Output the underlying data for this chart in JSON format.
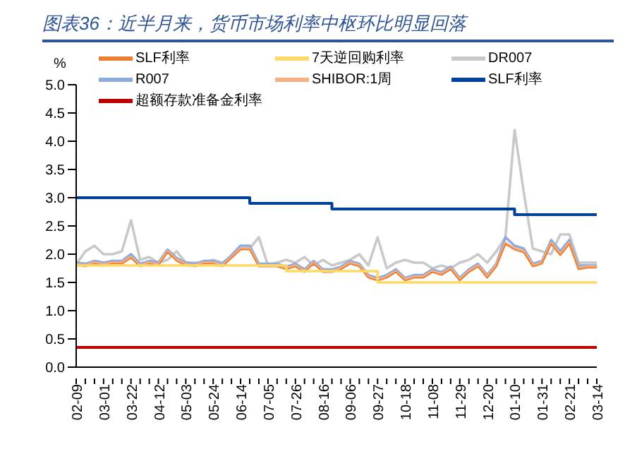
{
  "chart_data": {
    "type": "line",
    "title": "图表36：近半月来，货币市场利率中枢环比明显回落",
    "ylabel": "%",
    "categories": [
      "02-09",
      null,
      null,
      "03-01",
      null,
      null,
      "03-22",
      null,
      null,
      "04-12",
      null,
      null,
      "05-03",
      null,
      null,
      "05-24",
      null,
      null,
      "06-14",
      null,
      null,
      "07-05",
      null,
      null,
      "07-26",
      null,
      null,
      "08-16",
      null,
      null,
      "09-06",
      null,
      null,
      "09-27",
      null,
      null,
      "10-18",
      null,
      null,
      "11-08",
      null,
      null,
      "11-29",
      null,
      null,
      "12-20",
      null,
      null,
      "01-10",
      null,
      null,
      "01-31",
      null,
      null,
      "02-21",
      null,
      null,
      "03-14"
    ],
    "ylim": [
      0,
      5
    ],
    "yticks": [
      {
        "value": 0,
        "label": "0.0"
      },
      {
        "value": 0.5,
        "label": "0.5"
      },
      {
        "value": 1,
        "label": "1.0"
      },
      {
        "value": 1.5,
        "label": "1.5"
      },
      {
        "value": 2,
        "label": "2.0"
      },
      {
        "value": 2.5,
        "label": "2.5"
      },
      {
        "value": 3,
        "label": "3.0"
      },
      {
        "value": 3.5,
        "label": "3.5"
      },
      {
        "value": 4,
        "label": "4.0"
      },
      {
        "value": 4.5,
        "label": "4.5"
      },
      {
        "value": 5,
        "label": "5.0"
      }
    ],
    "grid": false,
    "legend": "top",
    "marker": "none",
    "series": [
      {
        "name": "SLF利率",
        "color": "#ed7d31",
        "values": [
          1.8,
          1.78,
          1.83,
          1.8,
          1.83,
          1.83,
          1.93,
          1.78,
          1.83,
          1.8,
          2.03,
          1.88,
          1.8,
          1.78,
          1.83,
          1.83,
          1.78,
          1.93,
          2.08,
          2.08,
          1.78,
          1.78,
          1.78,
          1.73,
          1.78,
          1.68,
          1.83,
          1.68,
          1.68,
          1.73,
          1.83,
          1.78,
          1.58,
          1.53,
          1.58,
          1.68,
          1.53,
          1.58,
          1.58,
          1.68,
          1.63,
          1.73,
          1.53,
          1.68,
          1.78,
          1.58,
          1.78,
          2.18,
          2.08,
          2.03,
          1.78,
          1.83,
          2.18,
          1.98,
          2.18,
          1.73,
          1.76,
          1.76
        ]
      },
      {
        "name": "7天逆回购利率",
        "color": "#ffd966",
        "type": "step",
        "values": [
          1.8,
          1.8,
          1.8,
          1.8,
          1.8,
          1.8,
          1.8,
          1.8,
          1.8,
          1.8,
          1.8,
          1.8,
          1.8,
          1.8,
          1.8,
          1.8,
          1.8,
          1.8,
          1.8,
          1.8,
          1.8,
          1.8,
          1.8,
          1.7,
          1.7,
          1.7,
          1.7,
          1.7,
          1.7,
          1.7,
          1.7,
          1.7,
          1.7,
          1.5,
          1.5,
          1.5,
          1.5,
          1.5,
          1.5,
          1.5,
          1.5,
          1.5,
          1.5,
          1.5,
          1.5,
          1.5,
          1.5,
          1.5,
          1.5,
          1.5,
          1.5,
          1.5,
          1.5,
          1.5,
          1.5,
          1.5,
          1.5,
          1.5
        ]
      },
      {
        "name": "DR007",
        "color": "#c9c9c9",
        "values": [
          1.82,
          2.05,
          2.15,
          2.0,
          2.0,
          2.05,
          2.6,
          1.9,
          1.95,
          1.85,
          1.9,
          2.05,
          1.85,
          1.85,
          1.85,
          1.9,
          1.85,
          1.95,
          2.1,
          2.1,
          2.3,
          1.8,
          1.85,
          1.9,
          1.85,
          1.95,
          1.8,
          1.9,
          1.8,
          1.85,
          1.9,
          2.0,
          1.8,
          2.3,
          1.75,
          1.85,
          1.9,
          1.85,
          1.85,
          1.75,
          1.8,
          1.75,
          1.85,
          1.9,
          2.0,
          1.85,
          2.05,
          2.3,
          4.2,
          3.1,
          2.1,
          2.05,
          2.0,
          2.35,
          2.35,
          1.85,
          1.85,
          1.85
        ]
      },
      {
        "name": "R007",
        "color": "#8faadc",
        "values": [
          1.85,
          1.83,
          1.88,
          1.85,
          1.88,
          1.88,
          2.0,
          1.83,
          1.88,
          1.85,
          2.08,
          1.93,
          1.85,
          1.83,
          1.88,
          1.88,
          1.83,
          1.98,
          2.15,
          2.15,
          1.83,
          1.83,
          1.83,
          1.78,
          1.83,
          1.73,
          1.88,
          1.73,
          1.73,
          1.78,
          1.88,
          1.83,
          1.63,
          1.58,
          1.63,
          1.73,
          1.58,
          1.63,
          1.63,
          1.73,
          1.68,
          1.78,
          1.58,
          1.73,
          1.83,
          1.63,
          1.83,
          2.3,
          2.15,
          2.1,
          1.83,
          1.88,
          2.25,
          2.05,
          2.25,
          1.8,
          1.8,
          1.8
        ]
      },
      {
        "name": "SHIBOR:1周",
        "color": "#f4b183",
        "values": [
          1.82,
          1.8,
          1.85,
          1.82,
          1.85,
          1.85,
          1.95,
          1.8,
          1.85,
          1.82,
          2.05,
          1.9,
          1.82,
          1.8,
          1.85,
          1.85,
          1.8,
          1.95,
          2.1,
          2.1,
          1.8,
          1.8,
          1.8,
          1.75,
          1.8,
          1.7,
          1.85,
          1.7,
          1.7,
          1.75,
          1.85,
          1.8,
          1.6,
          1.55,
          1.6,
          1.7,
          1.55,
          1.6,
          1.6,
          1.7,
          1.65,
          1.75,
          1.55,
          1.7,
          1.8,
          1.6,
          1.8,
          2.2,
          2.1,
          2.05,
          1.8,
          1.85,
          2.2,
          2.0,
          2.2,
          1.75,
          1.78,
          1.78
        ]
      },
      {
        "name": "SLF利率",
        "color": "#003f9a",
        "type": "step",
        "values": [
          3.0,
          3.0,
          3.0,
          3.0,
          3.0,
          3.0,
          3.0,
          3.0,
          3.0,
          3.0,
          3.0,
          3.0,
          3.0,
          3.0,
          3.0,
          3.0,
          3.0,
          3.0,
          3.0,
          2.9,
          2.9,
          2.9,
          2.9,
          2.9,
          2.9,
          2.9,
          2.9,
          2.9,
          2.8,
          2.8,
          2.8,
          2.8,
          2.8,
          2.8,
          2.8,
          2.8,
          2.8,
          2.8,
          2.8,
          2.8,
          2.8,
          2.8,
          2.8,
          2.8,
          2.8,
          2.8,
          2.8,
          2.8,
          2.7,
          2.7,
          2.7,
          2.7,
          2.7,
          2.7,
          2.7,
          2.7,
          2.7,
          2.7
        ]
      },
      {
        "name": "超额存款准备金利率",
        "color": "#c00000",
        "values": [
          0.35,
          0.35,
          0.35,
          0.35,
          0.35,
          0.35,
          0.35,
          0.35,
          0.35,
          0.35,
          0.35,
          0.35,
          0.35,
          0.35,
          0.35,
          0.35,
          0.35,
          0.35,
          0.35,
          0.35,
          0.35,
          0.35,
          0.35,
          0.35,
          0.35,
          0.35,
          0.35,
          0.35,
          0.35,
          0.35,
          0.35,
          0.35,
          0.35,
          0.35,
          0.35,
          0.35,
          0.35,
          0.35,
          0.35,
          0.35,
          0.35,
          0.35,
          0.35,
          0.35,
          0.35,
          0.35,
          0.35,
          0.35,
          0.35,
          0.35,
          0.35,
          0.35,
          0.35,
          0.35,
          0.35,
          0.35,
          0.35,
          0.35
        ]
      }
    ]
  }
}
